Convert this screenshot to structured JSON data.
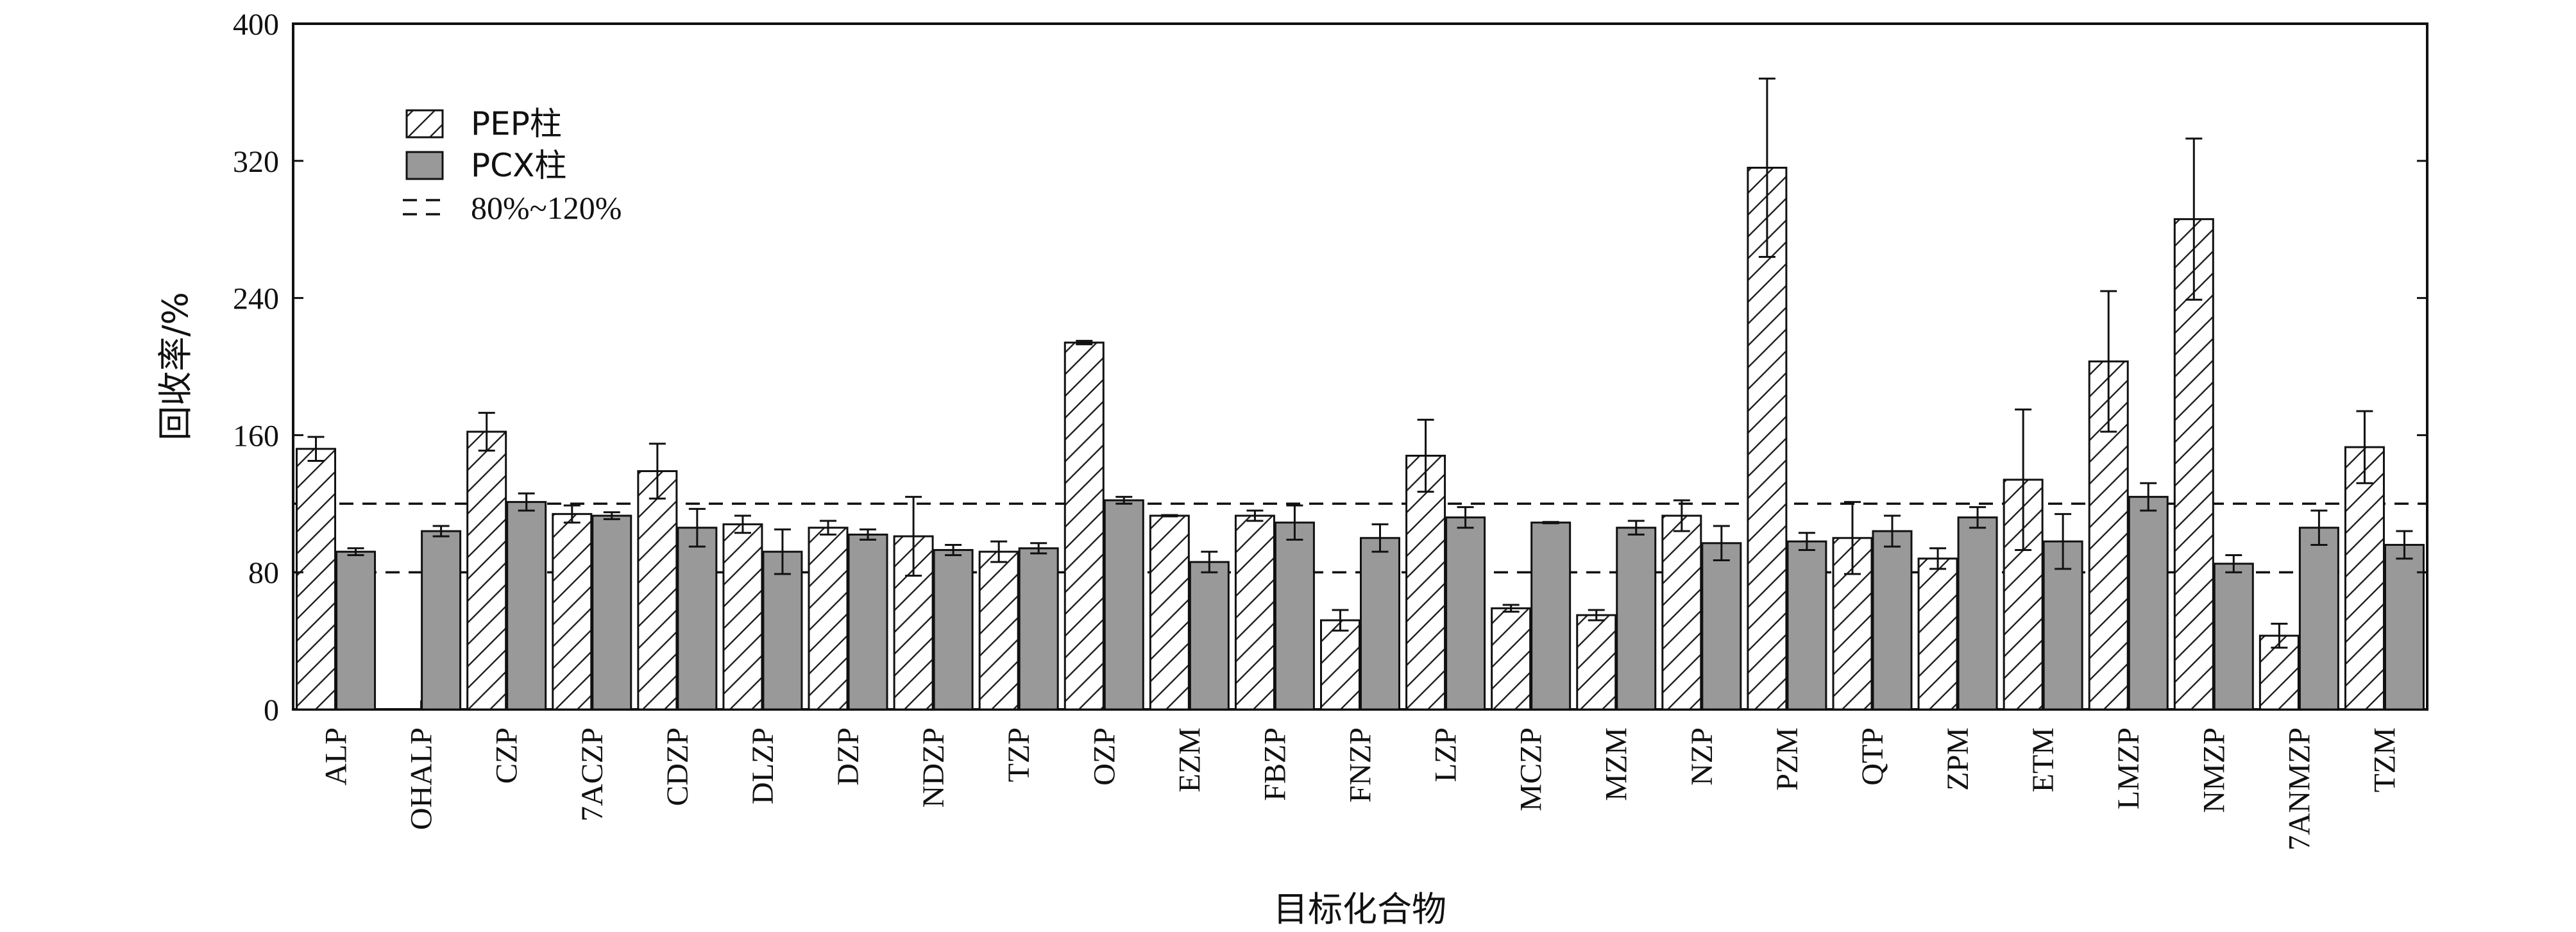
{
  "chart_data": {
    "type": "bar",
    "title": "",
    "xlabel": "目标化合物",
    "ylabel": "回收率/%",
    "ylim": [
      0,
      400
    ],
    "yticks": [
      0,
      80,
      160,
      240,
      320,
      400
    ],
    "legend_position": "top-left",
    "grid": false,
    "categories": [
      "ALP",
      "OHALP",
      "CZP",
      "7ACZP",
      "CDZP",
      "DLZP",
      "DZP",
      "NDZP",
      "TZP",
      "OZP",
      "EZM",
      "FBZP",
      "FNZP",
      "LZP",
      "MCZP",
      "MZM",
      "NZP",
      "PZM",
      "QTP",
      "ZPM",
      "ETM",
      "LMZP",
      "NMZP",
      "7ANMZP",
      "TZM"
    ],
    "series": [
      {
        "name": "PEP柱",
        "pattern": "hatched",
        "fill": "#ffffff",
        "values": [
          152,
          null,
          162,
          114,
          139,
          108,
          106,
          101,
          92,
          214,
          113,
          113,
          52,
          148,
          59,
          55,
          113,
          316,
          100,
          88,
          134,
          203,
          286,
          43,
          153
        ],
        "errors": [
          7,
          null,
          11,
          5,
          16,
          5,
          4,
          23,
          6,
          1,
          0,
          3,
          6,
          21,
          2,
          3,
          9,
          52,
          21,
          6,
          41,
          41,
          47,
          7,
          21
        ]
      },
      {
        "name": "PCX柱",
        "pattern": "solid",
        "fill": "#999999",
        "values": [
          92,
          104,
          121,
          113,
          106,
          92,
          102,
          93,
          94,
          122,
          86,
          109,
          100,
          112,
          109,
          106,
          97,
          98,
          104,
          112,
          98,
          124,
          85,
          106,
          96
        ],
        "errors": [
          2,
          3,
          5,
          2,
          11,
          13,
          3,
          3,
          3,
          2,
          6,
          10,
          8,
          6,
          0,
          4,
          10,
          5,
          9,
          6,
          16,
          8,
          5,
          10,
          8
        ]
      }
    ],
    "reference_lines": {
      "name": "80%~120%",
      "style": "dashed",
      "values": [
        80,
        120
      ]
    }
  }
}
